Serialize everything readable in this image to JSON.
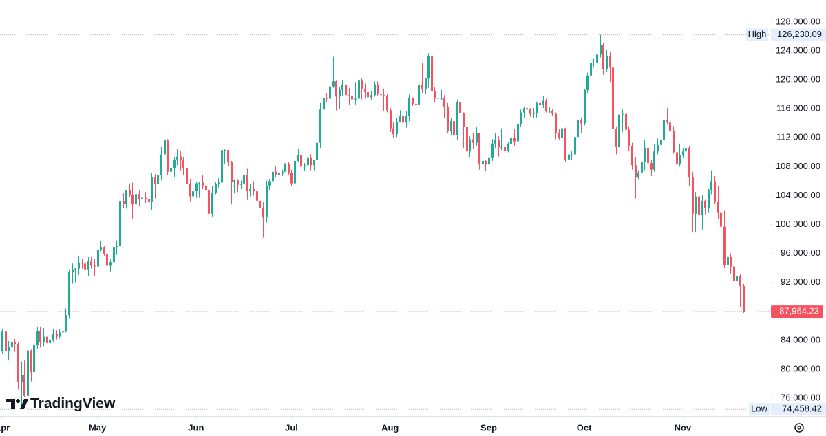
{
  "chart_data": {
    "type": "candlestick",
    "up_color": "#22ab94",
    "down_color": "#f7525f",
    "watermark": "TradingView",
    "grid": false,
    "xlim": [
      -0.65,
      241.3
    ],
    "xticks": [
      {
        "value": 0,
        "label": "Apr"
      },
      {
        "value": 30,
        "label": "May"
      },
      {
        "value": 61,
        "label": "Jun"
      },
      {
        "value": 91,
        "label": "Jul"
      },
      {
        "value": 122,
        "label": "Aug"
      },
      {
        "value": 153,
        "label": "Sep"
      },
      {
        "value": 183,
        "label": "Oct"
      },
      {
        "value": 214,
        "label": "Nov"
      }
    ],
    "ylim": [
      73527,
      131042
    ],
    "yticks": [
      {
        "value": 76000,
        "label": "76,000.00"
      },
      {
        "value": 80000,
        "label": "80,000.00"
      },
      {
        "value": 84000,
        "label": "84,000.00"
      },
      {
        "value": 88000,
        "label": "88,000.00"
      },
      {
        "value": 92000,
        "label": "92,000.00"
      },
      {
        "value": 96000,
        "label": "96,000.00"
      },
      {
        "value": 100000,
        "label": "100,000.00"
      },
      {
        "value": 104000,
        "label": "104,000.00"
      },
      {
        "value": 108000,
        "label": "108,000.00"
      },
      {
        "value": 112000,
        "label": "112,000.00"
      },
      {
        "value": 116000,
        "label": "116,000.00"
      },
      {
        "value": 120000,
        "label": "120,000.00"
      },
      {
        "value": 124000,
        "label": "124,000.00"
      },
      {
        "value": 128000,
        "label": "128,000.00"
      }
    ],
    "high_line": {
      "name": "High",
      "value": 126230.09,
      "label": "126,230.09"
    },
    "low_line": {
      "name": "Low",
      "value": 74458.42,
      "label": "74,458.42"
    },
    "last_line": {
      "value": 87964.23,
      "label": "87,964.23"
    },
    "open": [
      82500,
      85200,
      82500,
      83100,
      83800,
      83500,
      78200,
      79200,
      76300,
      82600,
      79600,
      83400,
      85300,
      83700,
      84500,
      83600,
      84000,
      84900,
      84500,
      85100,
      85200,
      87500,
      93400,
      93700,
      93900,
      94700,
      94600,
      93800,
      94900,
      94300,
      94200,
      96500,
      96900,
      95900,
      94300,
      94800,
      96900,
      97000,
      103200,
      102900,
      104700,
      104100,
      102800,
      104200,
      103500,
      103700,
      103500,
      103100,
      106500,
      105600,
      106800,
      109700,
      111700,
      107300,
      107800,
      109000,
      109400,
      108900,
      107800,
      105600,
      103900,
      104600,
      105700,
      105800,
      105400,
      104700,
      101500,
      104400,
      105600,
      105800,
      110300,
      110300,
      108700,
      105900,
      106100,
      105500,
      105600,
      106800,
      104600,
      104900,
      104600,
      103300,
      102300,
      101000,
      105400,
      106000,
      107300,
      106900,
      107100,
      107300,
      108400,
      107100,
      105700,
      108800,
      109600,
      108000,
      108200,
      109200,
      108200,
      108900,
      111300,
      115900,
      117500,
      117400,
      119100,
      119800,
      117700,
      118600,
      119300,
      117900,
      117800,
      117300,
      117400,
      119900,
      118800,
      118300,
      117600,
      117900,
      119400,
      118000,
      117900,
      117800,
      115800,
      113300,
      112500,
      114200,
      115000,
      114100,
      115000,
      117500,
      116700,
      116500,
      119300,
      118700,
      120200,
      123300,
      118400,
      117400,
      117500,
      117500,
      116300,
      112900,
      114300,
      112400,
      116900,
      115400,
      113500,
      110100,
      111800,
      111300,
      112600,
      108400,
      108800,
      108300,
      109200,
      111200,
      111700,
      110700,
      110700,
      110200,
      111100,
      112000,
      111500,
      113900,
      115500,
      116100,
      115900,
      115300,
      115400,
      116800,
      116500,
      117100,
      115700,
      115700,
      115300,
      112700,
      112000,
      113300,
      109000,
      109700,
      109700,
      112100,
      114400,
      114000,
      118600,
      120600,
      122300,
      122400,
      123500,
      124800,
      121500,
      123300,
      121700,
      113200,
      110700,
      115200,
      115300,
      113100,
      110800,
      108200,
      106500,
      107200,
      108700,
      110600,
      108500,
      107600,
      110100,
      111000,
      111700,
      114500,
      114100,
      112900,
      110000,
      108300,
      109600,
      110100,
      110600,
      106500,
      101500,
      103900,
      101300,
      103300,
      102300,
      104700,
      106000,
      103100,
      101600,
      99700,
      94400,
      95600,
      94200,
      92200,
      92900,
      91500
    ],
    "high": [
      85500,
      88500,
      83900,
      84700,
      84200,
      83700,
      81100,
      81200,
      83500,
      82700,
      84200,
      85800,
      85900,
      85700,
      86400,
      85400,
      85500,
      85400,
      85600,
      85700,
      88400,
      93800,
      94600,
      94000,
      95700,
      95300,
      95100,
      95500,
      95500,
      95200,
      97400,
      97800,
      97000,
      96000,
      95200,
      97700,
      97800,
      103900,
      104300,
      104800,
      105700,
      105800,
      104900,
      104700,
      104600,
      104500,
      103800,
      107100,
      107000,
      107300,
      110700,
      111900,
      111800,
      109500,
      109300,
      110400,
      110200,
      109300,
      108400,
      106300,
      105000,
      105900,
      105900,
      106800,
      106000,
      105900,
      105300,
      105900,
      106400,
      110500,
      110400,
      110300,
      108800,
      106200,
      106200,
      106100,
      108900,
      107700,
      105600,
      106000,
      106500,
      103900,
      103100,
      106100,
      106300,
      108100,
      108000,
      107800,
      107600,
      108500,
      108700,
      107600,
      109800,
      110500,
      109800,
      108500,
      109700,
      109700,
      109000,
      112000,
      116800,
      118800,
      118200,
      119500,
      123200,
      119900,
      119000,
      120000,
      120800,
      118900,
      118500,
      119700,
      120200,
      120200,
      119500,
      118700,
      118400,
      119800,
      119800,
      119000,
      118800,
      118100,
      116100,
      114100,
      114700,
      115800,
      115700,
      115700,
      118000,
      117600,
      117800,
      119300,
      122300,
      120300,
      123700,
      124400,
      119000,
      118000,
      118600,
      117900,
      116800,
      114800,
      114600,
      117300,
      117400,
      115500,
      113700,
      112200,
      112700,
      113500,
      112700,
      108900,
      109000,
      109900,
      111800,
      112600,
      112200,
      113300,
      111300,
      111400,
      112900,
      113200,
      114300,
      115900,
      116300,
      116600,
      116100,
      116100,
      117000,
      117200,
      117800,
      117400,
      116200,
      116000,
      115500,
      113200,
      113900,
      113400,
      110000,
      110200,
      112300,
      114800,
      114800,
      118700,
      121000,
      123900,
      122900,
      125700,
      126230.09,
      125100,
      124200,
      123900,
      122500,
      113500,
      115800,
      115900,
      115900,
      113600,
      111300,
      109300,
      107500,
      109400,
      111700,
      111300,
      109000,
      111100,
      111900,
      112000,
      115500,
      116100,
      116000,
      113600,
      111500,
      111200,
      110600,
      111200,
      110800,
      107300,
      104500,
      104200,
      104100,
      103400,
      104900,
      107500,
      106700,
      105300,
      104000,
      101900,
      96800,
      96000,
      95100,
      93700,
      93100,
      91800
    ],
    "low": [
      82100,
      82300,
      81200,
      81700,
      82400,
      77200,
      74458.42,
      76200,
      74600,
      78300,
      78900,
      82800,
      83000,
      83200,
      83200,
      83100,
      83800,
      84100,
      84200,
      83900,
      85100,
      87000,
      91800,
      92000,
      93000,
      93900,
      93100,
      92900,
      93900,
      92900,
      94100,
      96300,
      95700,
      94000,
      93500,
      93400,
      95800,
      96900,
      102300,
      102200,
      103800,
      100800,
      101400,
      102600,
      101400,
      103000,
      102600,
      102000,
      103600,
      104900,
      106100,
      109300,
      106800,
      106300,
      106600,
      108200,
      107500,
      106800,
      105100,
      103100,
      103100,
      103700,
      103700,
      104900,
      104100,
      100400,
      101100,
      104200,
      105100,
      105400,
      108400,
      108100,
      102800,
      104300,
      104500,
      104900,
      105000,
      103400,
      103900,
      104000,
      102300,
      100900,
      98200,
      100300,
      104700,
      105800,
      106600,
      106500,
      106700,
      107300,
      106800,
      105300,
      105100,
      108600,
      107300,
      107400,
      107900,
      107500,
      107500,
      108400,
      110600,
      115200,
      116900,
      117300,
      118900,
      115800,
      116000,
      117800,
      117500,
      116500,
      116600,
      116500,
      116400,
      117300,
      117400,
      115000,
      117200,
      117700,
      117800,
      117400,
      115700,
      115500,
      112800,
      112000,
      112100,
      114100,
      112700,
      113400,
      114300,
      116400,
      116000,
      116500,
      118200,
      118000,
      118900,
      117300,
      116900,
      117200,
      117200,
      114700,
      112700,
      112400,
      112200,
      111700,
      114900,
      110600,
      109400,
      109300,
      110400,
      110900,
      107600,
      107500,
      107400,
      107300,
      108800,
      110600,
      109400,
      110300,
      110000,
      110000,
      110700,
      110800,
      110900,
      113500,
      114700,
      115300,
      114900,
      114800,
      114800,
      114700,
      116100,
      115500,
      115400,
      115000,
      111800,
      111700,
      111600,
      108700,
      108600,
      108900,
      109300,
      111600,
      112700,
      113700,
      118200,
      119300,
      121700,
      122100,
      123100,
      120700,
      121100,
      119700,
      103000,
      109700,
      109800,
      112800,
      110200,
      110100,
      107600,
      103600,
      106200,
      106400,
      107500,
      107500,
      106700,
      107300,
      109700,
      110600,
      111400,
      113800,
      112600,
      109800,
      106300,
      108000,
      109200,
      109600,
      105300,
      99000,
      98900,
      100300,
      99300,
      101400,
      101600,
      104200,
      102800,
      100800,
      98100,
      94000,
      94000,
      93200,
      91200,
      89300,
      88600,
      87800
    ],
    "close": [
      85200,
      82500,
      83100,
      83800,
      83500,
      78200,
      79200,
      76300,
      82600,
      79600,
      83400,
      85300,
      83700,
      84500,
      83600,
      84000,
      84900,
      84500,
      85100,
      85200,
      87500,
      93400,
      93700,
      93900,
      94700,
      94600,
      93800,
      94900,
      94300,
      94200,
      96500,
      96900,
      95900,
      94300,
      94800,
      96900,
      97000,
      103200,
      102900,
      104700,
      104100,
      102800,
      104200,
      103500,
      103700,
      103500,
      103100,
      106500,
      105600,
      106800,
      109700,
      111700,
      107300,
      107800,
      109000,
      109400,
      108900,
      107800,
      105600,
      103900,
      104600,
      105700,
      105800,
      105400,
      104700,
      101500,
      104400,
      105600,
      105800,
      110300,
      110300,
      108700,
      105900,
      106100,
      105500,
      105600,
      106800,
      104600,
      104900,
      104600,
      103300,
      102300,
      101000,
      105400,
      106000,
      107300,
      106900,
      107100,
      107300,
      108400,
      107100,
      105700,
      108800,
      109600,
      108000,
      108200,
      109200,
      108200,
      108900,
      111300,
      115900,
      117500,
      117400,
      119100,
      119800,
      117700,
      118600,
      119300,
      117900,
      117800,
      117300,
      117400,
      119900,
      118800,
      118300,
      117600,
      117900,
      119400,
      118000,
      117900,
      117800,
      115800,
      113300,
      112500,
      114200,
      115000,
      114100,
      115000,
      117500,
      116700,
      116500,
      119300,
      118700,
      120200,
      123300,
      118400,
      117400,
      117500,
      117500,
      116300,
      112900,
      114300,
      112400,
      116900,
      115400,
      113500,
      110100,
      111800,
      111300,
      112600,
      108400,
      108800,
      108300,
      109200,
      111200,
      111700,
      110700,
      110700,
      110200,
      111100,
      112000,
      111500,
      113900,
      115500,
      116100,
      115900,
      115300,
      115400,
      116800,
      116500,
      117100,
      115700,
      115700,
      115300,
      112700,
      112000,
      113300,
      109000,
      109700,
      109700,
      112100,
      114400,
      114000,
      118600,
      120600,
      122300,
      122400,
      123500,
      124800,
      121500,
      123300,
      121700,
      113200,
      110700,
      115200,
      115300,
      113100,
      110800,
      108200,
      106500,
      107200,
      108700,
      110600,
      108500,
      107600,
      110100,
      111000,
      111700,
      114500,
      114100,
      112900,
      110000,
      108300,
      109600,
      110100,
      110600,
      106500,
      101500,
      103900,
      101300,
      103300,
      102300,
      104700,
      106000,
      103100,
      101600,
      99700,
      94400,
      95600,
      94200,
      92200,
      92900,
      91500,
      87964.23
    ]
  }
}
